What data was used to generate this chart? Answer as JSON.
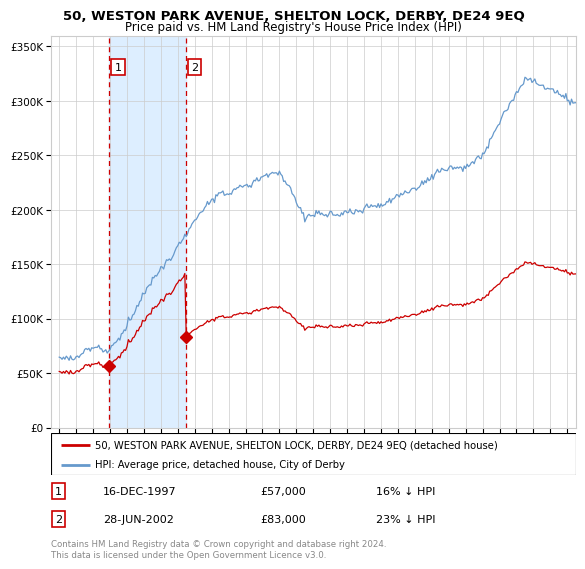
{
  "title": "50, WESTON PARK AVENUE, SHELTON LOCK, DERBY, DE24 9EQ",
  "subtitle": "Price paid vs. HM Land Registry's House Price Index (HPI)",
  "legend_line1": "50, WESTON PARK AVENUE, SHELTON LOCK, DERBY, DE24 9EQ (detached house)",
  "legend_line2": "HPI: Average price, detached house, City of Derby",
  "footnote": "Contains HM Land Registry data © Crown copyright and database right 2024.\nThis data is licensed under the Open Government Licence v3.0.",
  "transaction1_date": "16-DEC-1997",
  "transaction1_price": 57000,
  "transaction1_hpi": "16% ↓ HPI",
  "transaction2_date": "28-JUN-2002",
  "transaction2_price": 83000,
  "transaction2_hpi": "23% ↓ HPI",
  "vline1_x": 1997.96,
  "vline2_x": 2002.49,
  "sale1_x": 1997.96,
  "sale1_y": 57000,
  "sale2_x": 2002.49,
  "sale2_y": 83000,
  "red_color": "#cc0000",
  "blue_color": "#6699cc",
  "shaded_color": "#ddeeff",
  "background_color": "#ffffff",
  "grid_color": "#cccccc",
  "ylim": [
    0,
    360000
  ],
  "xlim": [
    1994.5,
    2025.5
  ]
}
